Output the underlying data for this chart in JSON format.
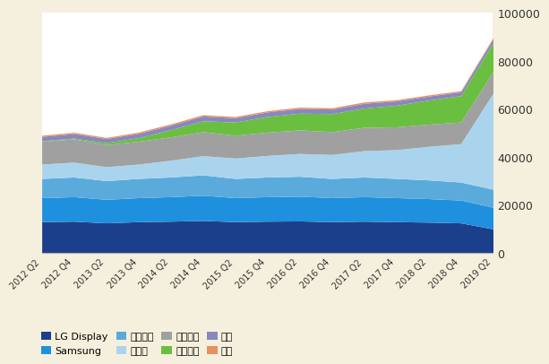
{
  "background_color": "#ffffff",
  "fig_background": "#f5f0dd",
  "series_names": [
    "LG Display",
    "Samsung",
    "群创光电",
    "京东方",
    "友达光电",
    "华星光电",
    "夏普",
    "松下"
  ],
  "colors": [
    "#1c3f8c",
    "#1e90dd",
    "#5aabdc",
    "#aad4ee",
    "#a0a0a0",
    "#6abf40",
    "#8888c0",
    "#e89060"
  ],
  "xlabels": [
    "2012 Q2",
    "2012 Q4",
    "2013 Q2",
    "2013 Q4",
    "2014 Q2",
    "2014 Q4",
    "2015 Q2",
    "2015 Q4",
    "2016 Q2",
    "2016 Q4",
    "2017 Q2",
    "2017 Q4",
    "2018 Q2",
    "2018 Q4",
    "2019 Q2"
  ],
  "ylim": [
    0,
    100000
  ],
  "yticks": [
    0,
    20000,
    40000,
    60000,
    80000,
    100000
  ],
  "data": {
    "LG Display": [
      13000,
      13200,
      12500,
      13000,
      13200,
      13500,
      13000,
      13200,
      13300,
      13000,
      13200,
      13000,
      12800,
      12500,
      10000
    ],
    "Samsung": [
      10000,
      10200,
      9800,
      10000,
      10200,
      10500,
      10000,
      10200,
      10300,
      10000,
      10200,
      10000,
      9800,
      9500,
      9000
    ],
    "群创光电": [
      8000,
      8200,
      7800,
      8000,
      8200,
      8500,
      8000,
      8200,
      8300,
      8000,
      8200,
      8000,
      7800,
      7500,
      7500
    ],
    "京东方": [
      6000,
      6200,
      5800,
      6000,
      7000,
      8000,
      8500,
      9000,
      9500,
      10000,
      11000,
      12000,
      14000,
      16000,
      40000
    ],
    "友达光电": [
      9500,
      9700,
      9200,
      9500,
      9700,
      10000,
      9500,
      9700,
      9800,
      9500,
      9700,
      9500,
      9200,
      9000,
      9000
    ],
    "华星光电": [
      200,
      300,
      800,
      1500,
      3000,
      4500,
      5500,
      6500,
      7000,
      7500,
      8000,
      9000,
      10000,
      11000,
      12000
    ],
    "夏普": [
      1800,
      1900,
      1700,
      1800,
      1900,
      2000,
      1800,
      1900,
      1950,
      1900,
      2000,
      1800,
      1700,
      1600,
      1700
    ],
    "松下": [
      500,
      520,
      480,
      500,
      520,
      550,
      500,
      520,
      540,
      520,
      550,
      500,
      480,
      450,
      500
    ]
  },
  "legend_order": [
    "LG Display",
    "Samsung",
    "群创光电",
    "京东方",
    "友达光电",
    "华星光电",
    "夏普",
    "松下"
  ]
}
